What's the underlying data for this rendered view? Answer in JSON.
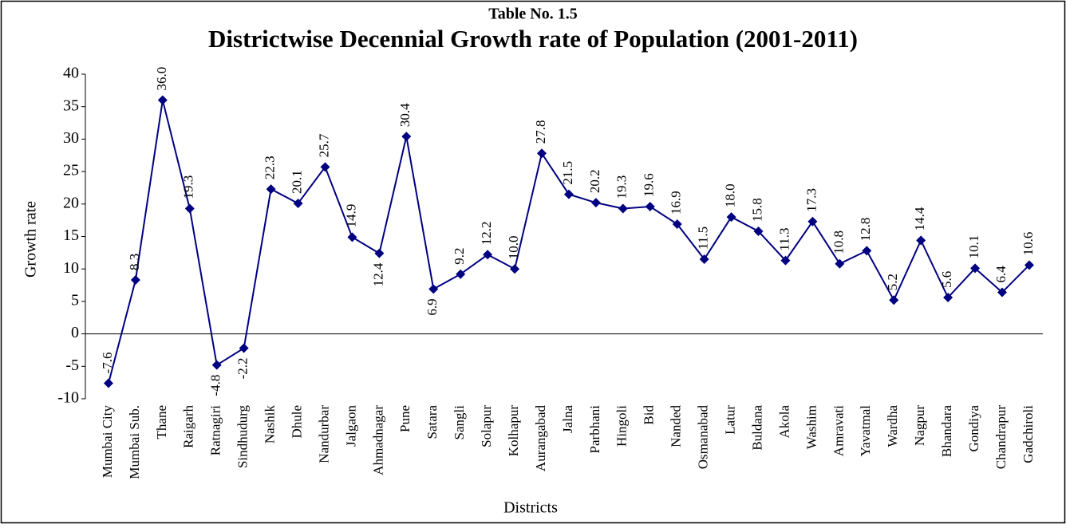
{
  "chart_data": {
    "type": "line",
    "supertitle": "Table No. 1.5",
    "title": "Districtwise Decennial Growth rate of  Population (2001-2011)",
    "y_label": "Growth rate",
    "x_label": "Districts",
    "categories": [
      "Mumbai City",
      "Mumbai Sub.",
      "Thane",
      "Raigarh",
      "Ratnagiri",
      "Sindhudurg",
      "Nashik",
      "Dhule",
      "Nandurbar",
      "Jalgaon",
      "Ahmadnagar",
      "Pune",
      "Satara",
      "Sangli",
      "Solapur",
      "Kolhapur",
      "Aurangabad",
      "Jalna",
      "Parbhani",
      "Hingoli",
      "Bid",
      "Nanded",
      "Osmanabad",
      "Latur",
      "Buldana",
      "Akola",
      "Washim",
      "Amravati",
      "Yavatmal",
      "Wardha",
      "Nagpur",
      "Bhandara",
      "Gondiya",
      "Chandrapur",
      "Gadchiroli"
    ],
    "values": [
      -7.6,
      8.3,
      36.0,
      19.3,
      -4.8,
      -2.2,
      22.3,
      20.1,
      25.7,
      14.9,
      12.4,
      30.4,
      6.9,
      9.2,
      12.2,
      10.0,
      27.8,
      21.5,
      20.2,
      19.3,
      19.6,
      16.9,
      11.5,
      18.0,
      15.8,
      11.3,
      17.3,
      10.8,
      12.8,
      5.2,
      14.4,
      5.6,
      10.1,
      6.4,
      10.6
    ],
    "value_labels": [
      "-7.6",
      "8.3",
      "36.0",
      "19.3",
      "-4.8",
      "-2.2",
      "22.3",
      "20.1",
      "25.7",
      "14.9",
      "12.4",
      "30.4",
      "6.9",
      "9.2",
      "12.2",
      "10.0",
      "27.8",
      "21.5",
      "20.2",
      "19.3",
      "19.6",
      "16.9",
      "11.5",
      "18.0",
      "15.8",
      "11.3",
      "17.3",
      "10.8",
      "12.8",
      "5.2",
      "14.4",
      "5.6",
      "10.1",
      "6.4",
      "10.6"
    ],
    "color": "#000080",
    "ylim": [
      -10,
      40
    ],
    "yticks": [
      -10,
      -5,
      0,
      5,
      10,
      15,
      20,
      25,
      30,
      35,
      40
    ],
    "grid": false
  }
}
